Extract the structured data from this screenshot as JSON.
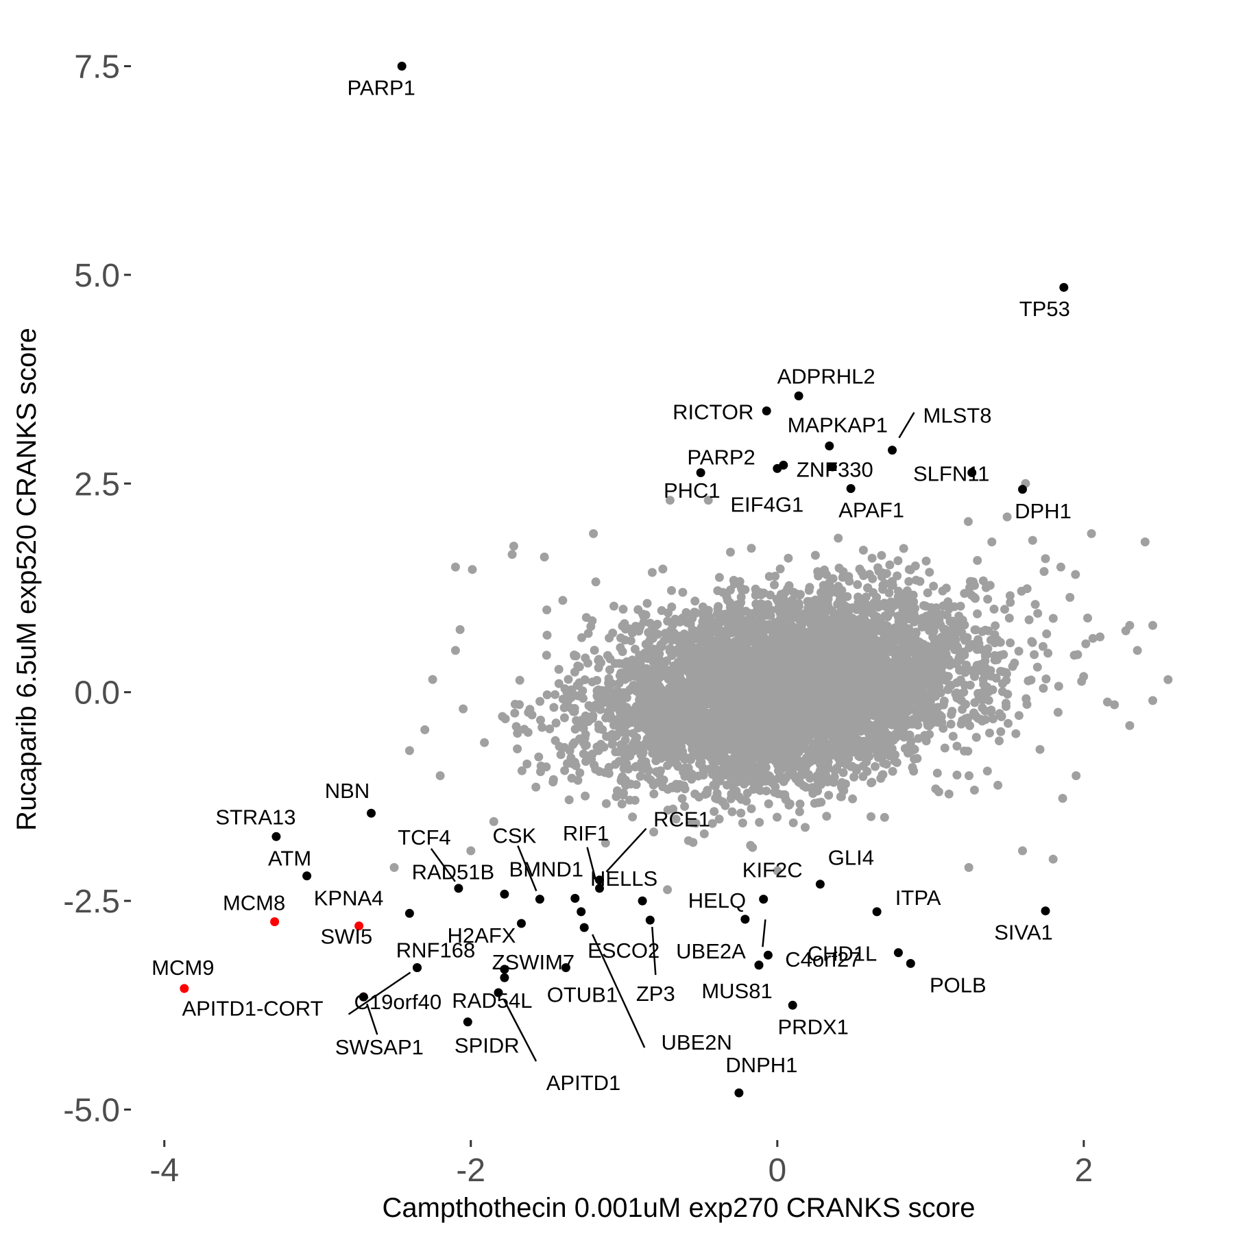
{
  "chart_data": {
    "type": "scatter",
    "xlabel": "Campthothecin 0.001uM exp270 CRANKS score",
    "ylabel": "Rucaparib 6.5uM exp520 CRANKS score",
    "xlim": [
      -4.2,
      2.6
    ],
    "ylim": [
      -5.3,
      7.8
    ],
    "x_ticks": [
      -4,
      -2,
      0,
      2
    ],
    "x_tick_labels": [
      "-4",
      "-2",
      "0",
      "2"
    ],
    "y_ticks": [
      -5.0,
      -2.5,
      0.0,
      2.5,
      5.0,
      7.5
    ],
    "y_tick_labels": [
      "-5.0",
      "-2.5",
      "0.0",
      "2.5",
      "5.0",
      "7.5"
    ],
    "grid": false,
    "legend": "none",
    "colors": {
      "background_points": "#a0a0a0",
      "highlight": "#000000",
      "red_highlight": "#ff0000",
      "tick_text": "#4d4d4d"
    },
    "background_cloud": {
      "approx_count": 6000,
      "center": [
        0.05,
        0.05
      ],
      "sd": [
        0.6,
        0.55
      ],
      "correlation": 0.25,
      "sparse_outliers": [
        [
          -2.1,
          1.5
        ],
        [
          -1.99,
          1.47
        ],
        [
          -1.73,
          1.65
        ],
        [
          -1.52,
          1.62
        ],
        [
          -1.4,
          1.1
        ],
        [
          -1.2,
          1.9
        ],
        [
          -0.7,
          2.3
        ],
        [
          -0.45,
          2.3
        ],
        [
          1.4,
          1.8
        ],
        [
          1.5,
          2.1
        ],
        [
          1.62,
          2.5
        ],
        [
          1.75,
          1.6
        ],
        [
          1.85,
          1.5
        ],
        [
          2.05,
          1.9
        ],
        [
          2.4,
          1.8
        ],
        [
          2.3,
          0.8
        ],
        [
          2.45,
          0.8
        ],
        [
          2.35,
          0.5
        ],
        [
          2.55,
          0.15
        ],
        [
          2.45,
          -0.1
        ],
        [
          2.2,
          -0.15
        ],
        [
          2.3,
          -0.4
        ],
        [
          1.95,
          -1.0
        ],
        [
          1.8,
          -2.0
        ],
        [
          1.6,
          -1.9
        ],
        [
          -2.05,
          -0.2
        ],
        [
          -2.3,
          -0.45
        ],
        [
          -2.4,
          -0.7
        ],
        [
          -2.2,
          -1.0
        ],
        [
          -2.5,
          -2.1
        ],
        [
          -2.0,
          -1.9
        ],
        [
          -1.85,
          -1.55
        ],
        [
          -2.1,
          0.5
        ],
        [
          -2.07,
          0.75
        ],
        [
          -1.72,
          1.75
        ],
        [
          1.25,
          -2.1
        ],
        [
          0.7,
          -1.5
        ],
        [
          -0.55,
          -1.8
        ]
      ]
    },
    "highlighted_points": [
      {
        "gene": "PARP1",
        "x": -2.45,
        "y": 7.5,
        "color": "#000000"
      },
      {
        "gene": "TP53",
        "x": 1.87,
        "y": 4.85,
        "color": "#000000"
      },
      {
        "gene": "ADPRHL2",
        "x": 0.14,
        "y": 3.55,
        "color": "#000000"
      },
      {
        "gene": "RICTOR",
        "x": -0.07,
        "y": 3.37,
        "color": "#000000"
      },
      {
        "gene": "MAPKAP1",
        "x": 0.34,
        "y": 2.95,
        "color": "#000000"
      },
      {
        "gene": "MLST8",
        "x": 0.75,
        "y": 2.9,
        "color": "#000000"
      },
      {
        "gene": "SLFN11",
        "x": 1.27,
        "y": 2.63,
        "color": "#000000"
      },
      {
        "gene": "PARP2",
        "x": -0.5,
        "y": 2.63,
        "color": "#000000"
      },
      {
        "gene": "ZNF330",
        "x": 0.04,
        "y": 2.72,
        "color": "#000000"
      },
      {
        "gene": "EIF4G1",
        "x": 0.0,
        "y": 2.68,
        "color": "#000000"
      },
      {
        "gene": "APAF1",
        "x": 0.48,
        "y": 2.44,
        "color": "#000000"
      },
      {
        "gene": "PHC1",
        "x": 0.36,
        "y": 2.7,
        "color": "#000000"
      },
      {
        "gene": "DPH1",
        "x": 1.6,
        "y": 2.43,
        "color": "#000000"
      },
      {
        "gene": "NBN",
        "x": -2.65,
        "y": -1.45,
        "color": "#000000"
      },
      {
        "gene": "STRA13",
        "x": -3.27,
        "y": -1.73,
        "color": "#000000"
      },
      {
        "gene": "ATM",
        "x": -3.07,
        "y": -2.2,
        "color": "#000000"
      },
      {
        "gene": "MCM8",
        "x": -3.28,
        "y": -2.75,
        "color": "#ff0000"
      },
      {
        "gene": "KPNA4",
        "x": -2.73,
        "y": -2.8,
        "color": "#ff0000"
      },
      {
        "gene": "SWI5",
        "x": -2.4,
        "y": -2.65,
        "color": "#000000"
      },
      {
        "gene": "MCM9",
        "x": -3.87,
        "y": -3.55,
        "color": "#ff0000"
      },
      {
        "gene": "C19orf40",
        "x": -2.7,
        "y": -3.65,
        "color": "#ff0000"
      },
      {
        "gene": "RNF168",
        "x": -2.35,
        "y": -3.3,
        "color": "#000000"
      },
      {
        "gene": "APITD1-CORT",
        "x": -2.35,
        "y": -3.3,
        "color": "#000000"
      },
      {
        "gene": "SWSAP1",
        "x": -2.7,
        "y": -3.65,
        "color": "#000000"
      },
      {
        "gene": "TCF4",
        "x": -2.08,
        "y": -2.35,
        "color": "#000000"
      },
      {
        "gene": "RAD51B",
        "x": -1.78,
        "y": -2.42,
        "color": "#000000"
      },
      {
        "gene": "H2AFX",
        "x": -1.67,
        "y": -2.77,
        "color": "#000000"
      },
      {
        "gene": "CSK",
        "x": -1.55,
        "y": -2.48,
        "color": "#000000"
      },
      {
        "gene": "BMND1",
        "x": -1.32,
        "y": -2.47,
        "color": "#000000"
      },
      {
        "gene": "ZSWIM7",
        "x": -1.78,
        "y": -3.32,
        "color": "#000000"
      },
      {
        "gene": "RAD54L",
        "x": -1.78,
        "y": -3.42,
        "color": "#000000"
      },
      {
        "gene": "SPIDR",
        "x": -2.02,
        "y": -3.95,
        "color": "#000000"
      },
      {
        "gene": "APITD1",
        "x": -1.82,
        "y": -3.6,
        "color": "#000000"
      },
      {
        "gene": "OTUB1",
        "x": -1.38,
        "y": -3.3,
        "color": "#000000"
      },
      {
        "gene": "RIF1",
        "x": -1.16,
        "y": -2.35,
        "color": "#000000"
      },
      {
        "gene": "RCE1",
        "x": -1.16,
        "y": -2.25,
        "color": "#000000"
      },
      {
        "gene": "HELLS",
        "x": -0.88,
        "y": -2.5,
        "color": "#000000"
      },
      {
        "gene": "ESCO2",
        "x": -1.28,
        "y": -2.63,
        "color": "#000000"
      },
      {
        "gene": "ZP3",
        "x": -0.83,
        "y": -2.73,
        "color": "#000000"
      },
      {
        "gene": "UBE2N",
        "x": -1.26,
        "y": -2.82,
        "color": "#000000"
      },
      {
        "gene": "HELQ",
        "x": -0.21,
        "y": -2.72,
        "color": "#000000"
      },
      {
        "gene": "KIF2C",
        "x": -0.09,
        "y": -2.48,
        "color": "#000000"
      },
      {
        "gene": "GLI4",
        "x": 0.28,
        "y": -2.3,
        "color": "#000000"
      },
      {
        "gene": "C4orf27",
        "x": -0.06,
        "y": -3.15,
        "color": "#000000"
      },
      {
        "gene": "UBE2A",
        "x": -0.12,
        "y": -3.27,
        "color": "#000000"
      },
      {
        "gene": "MUS81",
        "x": -0.12,
        "y": -3.27,
        "color": "#000000"
      },
      {
        "gene": "ITPA",
        "x": 0.65,
        "y": -2.63,
        "color": "#000000"
      },
      {
        "gene": "CHD1L",
        "x": 0.79,
        "y": -3.12,
        "color": "#000000"
      },
      {
        "gene": "POLB",
        "x": 0.87,
        "y": -3.25,
        "color": "#000000"
      },
      {
        "gene": "SIVA1",
        "x": 1.75,
        "y": -2.62,
        "color": "#000000"
      },
      {
        "gene": "PRDX1",
        "x": 0.1,
        "y": -3.75,
        "color": "#000000"
      },
      {
        "gene": "DNPH1",
        "x": -0.25,
        "y": -4.8,
        "color": "#000000"
      }
    ]
  }
}
